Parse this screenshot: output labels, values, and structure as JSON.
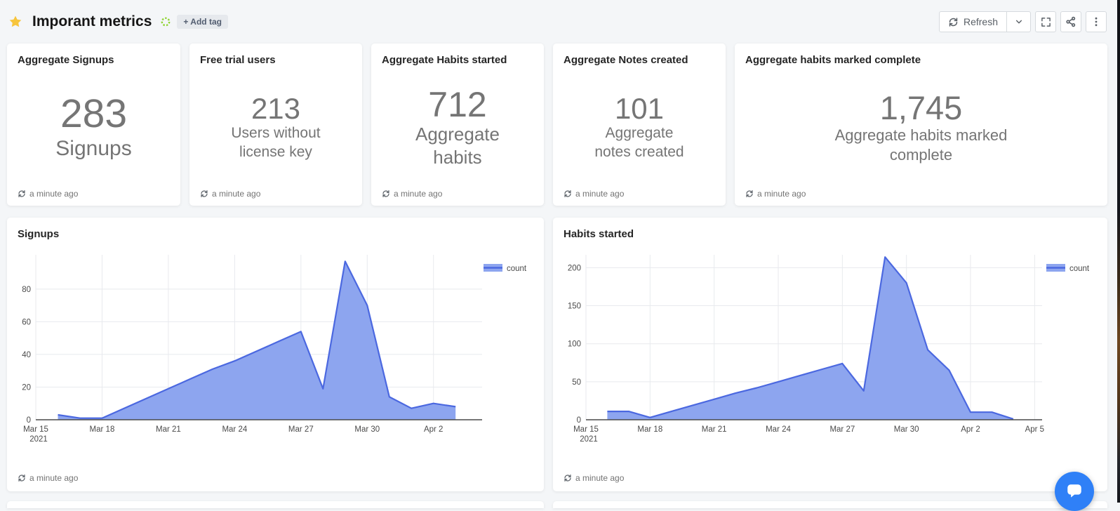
{
  "header": {
    "title": "Imporant metrics",
    "add_tag_label": "+ Add tag",
    "refresh_label": "Refresh"
  },
  "colors": {
    "star": "#f7c53d",
    "tag_spinner_green": "#8fd332",
    "chart_line": "#4b68e0",
    "chart_fill": "#8da5ef",
    "chat_bubble": "#2f80f7"
  },
  "counters": [
    {
      "title": "Aggregate Signups",
      "value": "283",
      "name": "Signups",
      "updated": "a minute ago"
    },
    {
      "title": "Free trial users",
      "value": "213",
      "name": "Users without license key",
      "updated": "a minute ago"
    },
    {
      "title": "Aggregate Habits started",
      "value": "712",
      "name": "Aggregate habits",
      "updated": "a minute ago"
    },
    {
      "title": "Aggregate Notes created",
      "value": "101",
      "name": "Aggregate notes created",
      "updated": "a minute ago"
    },
    {
      "title": "Aggregate habits marked complete",
      "value": "1,745",
      "name": "Aggregate habits marked complete",
      "updated": "a minute ago"
    }
  ],
  "chart_data": [
    {
      "type": "area",
      "title": "Signups",
      "updated": "a minute ago",
      "legend_position": "top-right",
      "x_axis": {
        "unit": "days since Mar 15, 2021",
        "tick_labels": [
          "Mar 15",
          "Mar 18",
          "Mar 21",
          "Mar 24",
          "Mar 27",
          "Mar 30",
          "Apr 2"
        ],
        "tick_days": [
          0,
          3,
          6,
          9,
          12,
          15,
          18
        ],
        "year_label": "2021",
        "xlim_days": [
          0,
          20.2
        ]
      },
      "y_axis": {
        "ticks": [
          0,
          20,
          40,
          60,
          80
        ],
        "max": 101
      },
      "series": [
        {
          "name": "count",
          "points_days": [
            1,
            2,
            3,
            4,
            5,
            6,
            7,
            8,
            9,
            10,
            11,
            12,
            13,
            14,
            15,
            16,
            17,
            18,
            19
          ],
          "values": [
            3,
            1,
            1,
            7,
            13,
            19,
            25,
            31,
            36,
            42,
            48,
            54,
            19,
            97,
            70,
            14,
            7,
            10,
            8
          ]
        }
      ]
    },
    {
      "type": "area",
      "title": "Habits started",
      "updated": "a minute ago",
      "legend_position": "top-right",
      "x_axis": {
        "unit": "days since Mar 15, 2021",
        "tick_labels": [
          "Mar 15",
          "Mar 18",
          "Mar 21",
          "Mar 24",
          "Mar 27",
          "Mar 30",
          "Apr 2",
          "Apr 5"
        ],
        "tick_days": [
          0,
          3,
          6,
          9,
          12,
          15,
          18,
          21
        ],
        "year_label": "2021",
        "xlim_days": [
          0,
          21.35
        ]
      },
      "y_axis": {
        "ticks": [
          0,
          50,
          100,
          150,
          200
        ],
        "max": 217
      },
      "series": [
        {
          "name": "count",
          "points_days": [
            1,
            2,
            3,
            4,
            5,
            6,
            7,
            8,
            9,
            10,
            11,
            12,
            13,
            14,
            15,
            16,
            17,
            18,
            19,
            20
          ],
          "values": [
            11,
            11,
            3,
            11,
            19,
            27,
            35,
            42,
            50,
            58,
            66,
            74,
            38,
            214,
            180,
            92,
            65,
            10,
            10,
            1
          ]
        }
      ]
    }
  ]
}
